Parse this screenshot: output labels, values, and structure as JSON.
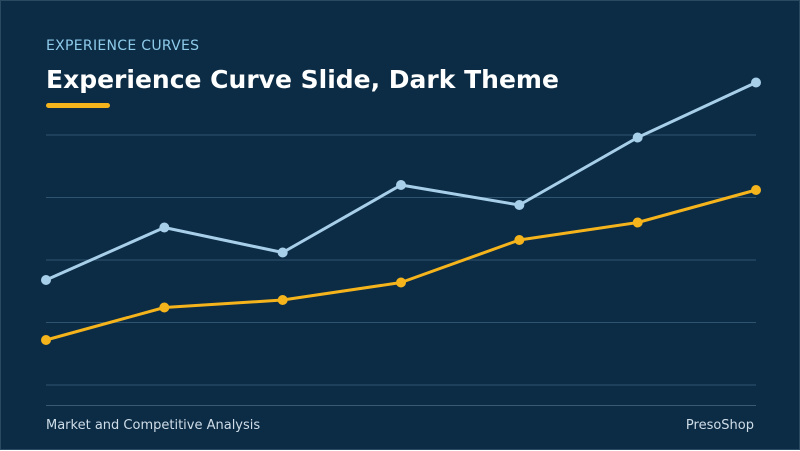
{
  "header": {
    "eyebrow": "EXPERIENCE CURVES",
    "title": "Experience Curve Slide, Dark Theme"
  },
  "footer": {
    "left": "Market and Competitive Analysis",
    "brand": "PresoShop"
  },
  "colors": {
    "background": "#0c2c45",
    "accent": "#f5b41c",
    "series_light": "#a8cfea",
    "series_gold": "#f5b41c",
    "grid": "#2f5470"
  },
  "chart_data": {
    "type": "line",
    "x": [
      1,
      2,
      3,
      4,
      5,
      6,
      7
    ],
    "ylim": [
      0,
      100
    ],
    "grid": true,
    "legend": "none",
    "series": [
      {
        "values": [
          42,
          63,
          53,
          80,
          72,
          99,
          121
        ],
        "color": "#a8cfea"
      },
      {
        "values": [
          18,
          31,
          34,
          41,
          58,
          65,
          78
        ],
        "color": "#f5b41c"
      }
    ]
  }
}
